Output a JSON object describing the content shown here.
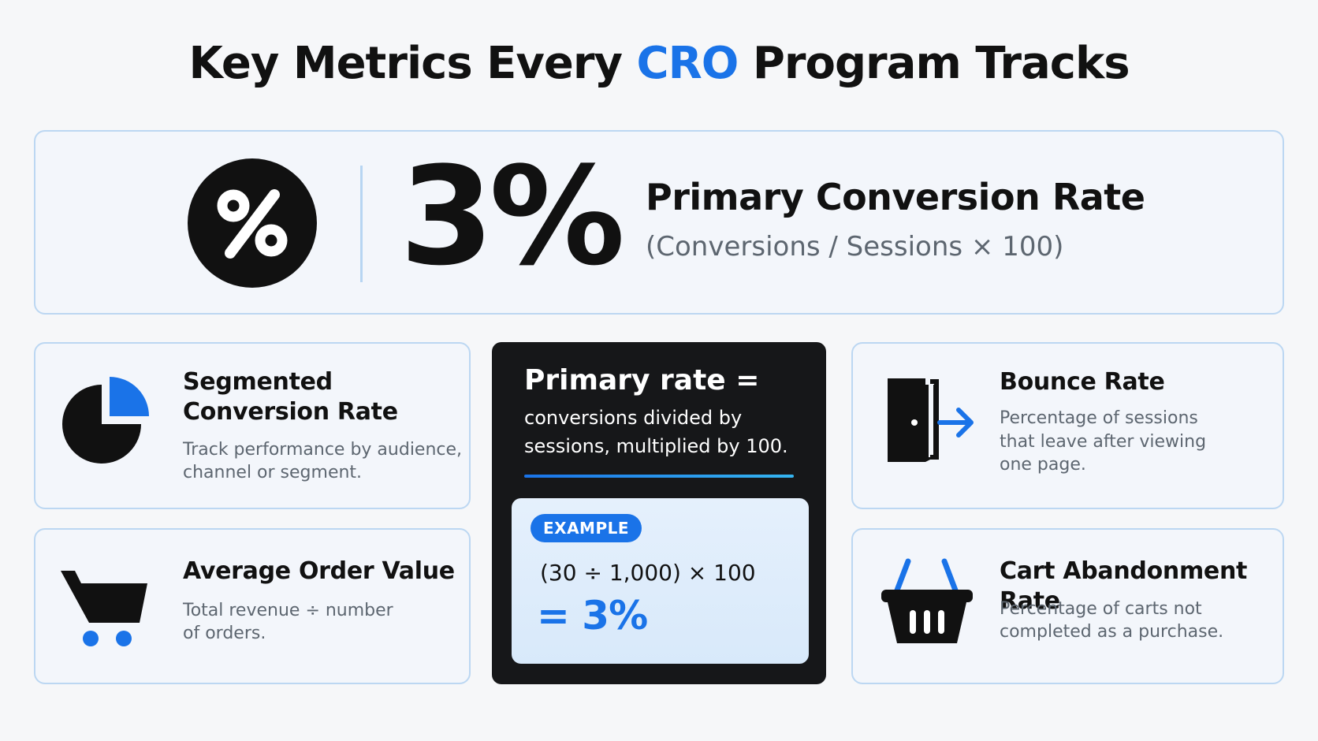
{
  "title": {
    "before": "Key Metrics Every ",
    "accent": "CRO",
    "after": " Program Tracks"
  },
  "colors": {
    "accent": "#1a73e8",
    "ink": "#111111",
    "muted": "#5d6670",
    "card_border": "#bcd7f2"
  },
  "hero": {
    "icon": "percent-icon",
    "value": "3%",
    "label": "Primary Conversion Rate",
    "formula": "(Conversions / Sessions × 100)"
  },
  "cards": {
    "segmented": {
      "icon": "pie-chart-icon",
      "title_line1": "Segmented",
      "title_line2": "Conversion Rate",
      "desc_line1": "Track performance by audience,",
      "desc_line2": "channel or segment."
    },
    "aov": {
      "icon": "shopping-cart-icon",
      "title": "Average Order Value",
      "desc_line1": "Total revenue ÷ number",
      "desc_line2": "of orders."
    },
    "bounce": {
      "icon": "door-exit-icon",
      "title": "Bounce Rate",
      "desc_line1": "Percentage of sessions",
      "desc_line2": "that leave after viewing",
      "desc_line3": "one page."
    },
    "cart": {
      "icon": "basket-icon",
      "title": "Cart Abandonment Rate",
      "desc_line1": "Percentage of carts not",
      "desc_line2": "completed as a purchase."
    }
  },
  "explainer": {
    "title": "Primary rate =",
    "desc_line1": "conversions divided by",
    "desc_line2": "sessions, multiplied by 100.",
    "example_tag": "EXAMPLE",
    "example_expr": "(30 ÷ 1,000) × 100",
    "example_result": "= 3%"
  }
}
